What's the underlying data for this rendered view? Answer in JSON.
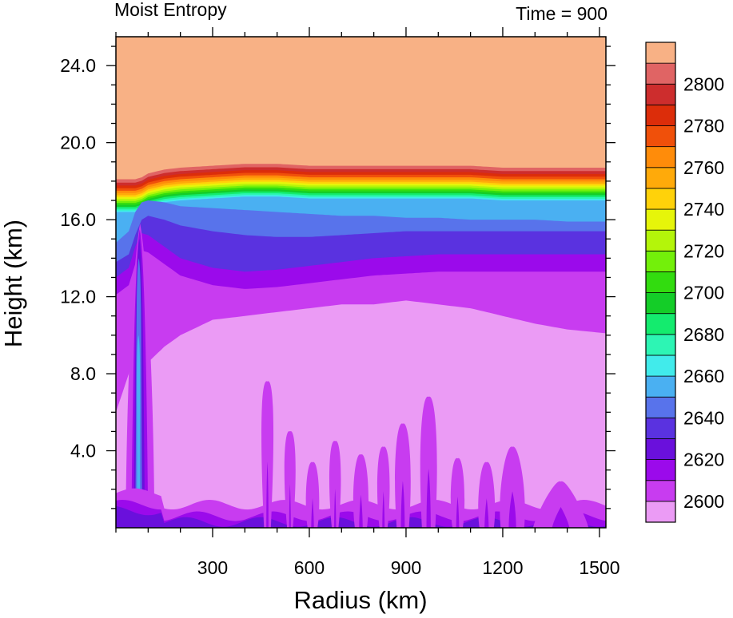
{
  "chart_data": {
    "type": "heatmap",
    "title_left": "Moist Entropy",
    "title_right": "Time = 900",
    "xlabel": "Radius (km)",
    "ylabel": "Height (km)",
    "xlim": [
      0,
      1520
    ],
    "ylim": [
      0,
      25.5
    ],
    "x_ticks": [
      300,
      600,
      900,
      1200,
      1500
    ],
    "x_tick_labels": [
      "300",
      "600",
      "900",
      "1200",
      "1500"
    ],
    "y_ticks": [
      4,
      8,
      12,
      16,
      20,
      24
    ],
    "y_tick_labels": [
      "4.0",
      "8.0",
      "12.0",
      "16.0",
      "20.0",
      "24.0"
    ],
    "colorbar": {
      "levels": [
        2590,
        2600,
        2610,
        2620,
        2630,
        2640,
        2650,
        2660,
        2670,
        2680,
        2690,
        2700,
        2710,
        2720,
        2730,
        2740,
        2750,
        2760,
        2770,
        2780,
        2790,
        2800,
        2810
      ],
      "labels": [
        "2600",
        "2620",
        "2640",
        "2660",
        "2680",
        "2700",
        "2720",
        "2740",
        "2760",
        "2780",
        "2800"
      ],
      "colors": [
        "#eb9bf5",
        "#c83cf0",
        "#9b0aeb",
        "#6a10dc",
        "#5a32e0",
        "#5873eb",
        "#4ab0f2",
        "#41ebeb",
        "#2df5b4",
        "#14eb6e",
        "#14cd28",
        "#32dc0f",
        "#73f00a",
        "#b4f50a",
        "#e6f50a",
        "#ffd20a",
        "#ffaa0a",
        "#ff8c0a",
        "#f0500a",
        "#dc2d0a",
        "#cd2d2d",
        "#e06464",
        "#f8b185"
      ]
    },
    "layer_profiles": {
      "description": "Approximate contour boundary heights (km) as a function of radius (km)",
      "radius": [
        0,
        40,
        60,
        80,
        100,
        150,
        200,
        300,
        400,
        500,
        600,
        700,
        800,
        900,
        1000,
        1100,
        1200,
        1300,
        1400,
        1520
      ],
      "top_2800": [
        18.1,
        18.1,
        18.1,
        18.2,
        18.4,
        18.6,
        18.7,
        18.8,
        18.9,
        18.9,
        18.8,
        18.8,
        18.8,
        18.8,
        18.8,
        18.8,
        18.7,
        18.7,
        18.7,
        18.7
      ],
      "top_2650": [
        14.8,
        15.4,
        16.4,
        16.9,
        17.0,
        16.9,
        16.7,
        16.6,
        16.5,
        16.4,
        16.3,
        16.2,
        16.2,
        16.1,
        16.1,
        16.0,
        16.0,
        16.0,
        15.9,
        15.9
      ],
      "top_2630": [
        13.8,
        14.2,
        15.2,
        16.0,
        16.2,
        16.0,
        15.7,
        15.4,
        15.2,
        15.1,
        15.1,
        15.2,
        15.3,
        15.4,
        15.4,
        15.4,
        15.4,
        15.4,
        15.4,
        15.4
      ],
      "top_2620": [
        13.0,
        13.5,
        14.6,
        15.3,
        15.2,
        14.6,
        14.0,
        13.5,
        13.3,
        13.4,
        13.6,
        13.8,
        14.0,
        14.1,
        14.2,
        14.2,
        14.2,
        14.2,
        14.2,
        14.2
      ],
      "top_2600": [
        6.0,
        8.0,
        10.0,
        9.0,
        8.6,
        9.4,
        10.0,
        10.8,
        11.0,
        11.2,
        11.4,
        11.6,
        11.6,
        11.8,
        11.6,
        11.4,
        11.0,
        10.6,
        10.3,
        10.1
      ]
    }
  }
}
